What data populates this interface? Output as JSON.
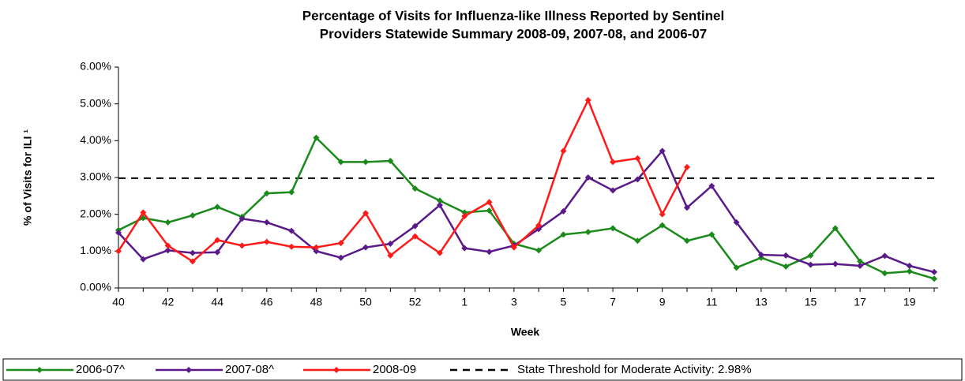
{
  "chart_data": {
    "type": "line",
    "title": [
      "Percentage of Visits for Influenza-like Illness Reported by Sentinel",
      "Providers Statewide Summary 2008-09, 2007-08, and 2006-07"
    ],
    "x_label": "Week",
    "y_label": "% of Visits for ILI ¹",
    "categories": [
      "40",
      null,
      "42",
      null,
      "44",
      null,
      "46",
      null,
      "48",
      null,
      "50",
      null,
      "52",
      null,
      "1",
      null,
      "3",
      null,
      "5",
      null,
      "7",
      null,
      "9",
      null,
      "11",
      null,
      "13",
      null,
      "15",
      null,
      "17",
      null,
      "19",
      null
    ],
    "series": [
      {
        "name": "2006-07^",
        "color": "#1a8a1a",
        "values": [
          1.57,
          1.9,
          1.78,
          1.97,
          2.2,
          1.93,
          2.57,
          2.6,
          4.08,
          3.42,
          3.42,
          3.45,
          2.7,
          2.37,
          2.05,
          2.1,
          1.2,
          1.02,
          1.45,
          1.52,
          1.62,
          1.28,
          1.7,
          1.28,
          1.45,
          0.55,
          0.82,
          0.58,
          0.88,
          1.62,
          0.72,
          0.4,
          0.45,
          0.25
        ]
      },
      {
        "name": "2007-08^",
        "color": "#5a1a8a",
        "values": [
          1.5,
          0.78,
          1.02,
          0.95,
          0.97,
          1.88,
          1.78,
          1.55,
          1.0,
          0.82,
          1.1,
          1.2,
          1.68,
          2.25,
          1.08,
          0.98,
          1.15,
          1.6,
          2.08,
          3.0,
          2.65,
          2.95,
          3.72,
          2.18,
          2.77,
          1.78,
          0.9,
          0.88,
          0.63,
          0.65,
          0.6,
          0.87,
          0.6,
          0.43
        ]
      },
      {
        "name": "2008-09",
        "color": "#ff1a1a",
        "values": [
          1.0,
          2.05,
          1.15,
          0.72,
          1.3,
          1.15,
          1.25,
          1.12,
          1.1,
          1.22,
          2.03,
          0.88,
          1.4,
          0.95,
          1.95,
          2.33,
          1.1,
          1.7,
          3.72,
          5.1,
          3.42,
          3.52,
          2.0,
          3.28,
          null,
          null,
          null,
          null,
          null,
          null,
          null,
          null,
          null,
          null
        ]
      }
    ],
    "threshold": {
      "value": 2.98,
      "label": "State Threshold for Moderate Activity: 2.98%",
      "color": "#000000"
    },
    "ylim": [
      0,
      6
    ],
    "yticks": [
      {
        "value": 0,
        "label": "0.00%"
      },
      {
        "value": 1,
        "label": "1.00%"
      },
      {
        "value": 2,
        "label": "2.00%"
      },
      {
        "value": 3,
        "label": "3.00%"
      },
      {
        "value": 4,
        "label": "4.00%"
      },
      {
        "value": 5,
        "label": "5.00%"
      },
      {
        "value": 6,
        "label": "6.00%"
      }
    ],
    "grid": false,
    "legend": "bottom"
  }
}
